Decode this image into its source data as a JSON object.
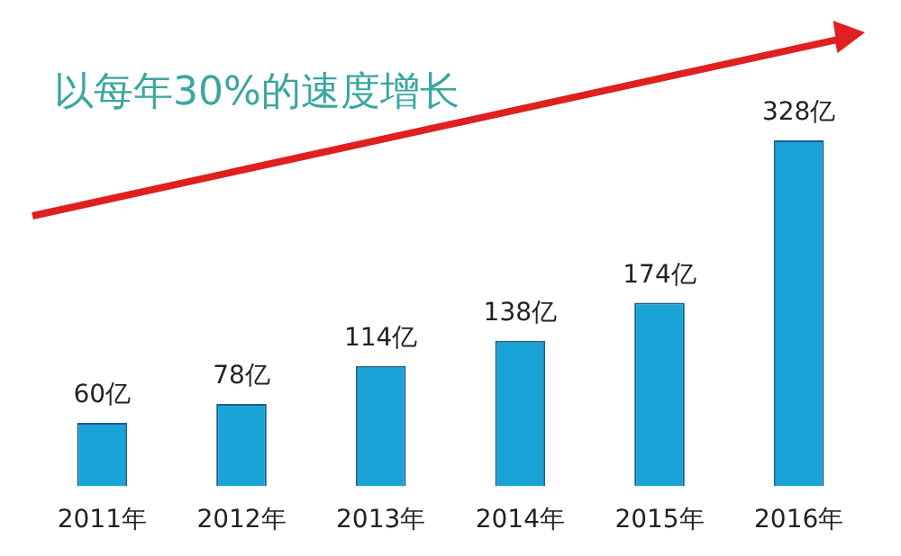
{
  "chart_data": {
    "type": "bar",
    "title": "以每年30%的速度增长",
    "categories": [
      "2011年",
      "2012年",
      "2013年",
      "2014年",
      "2015年",
      "2016年"
    ],
    "values": [
      60,
      78,
      114,
      138,
      174,
      328
    ],
    "value_labels": [
      "60亿",
      "78亿",
      "114亿",
      "138亿",
      "174亿",
      "328亿"
    ],
    "color": "#1aa3d6",
    "ylim": [
      0,
      328
    ],
    "legend": false
  }
}
